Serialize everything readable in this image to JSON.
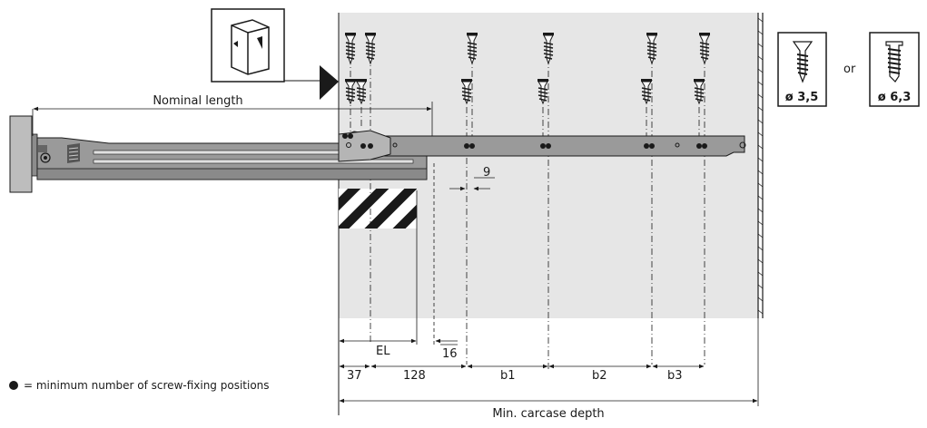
{
  "labels": {
    "nominal_length": "Nominal length",
    "or": "or",
    "screw_a": "ø 3,5",
    "screw_b": "ø 6,3",
    "dim_9": "9",
    "dim_16": "16",
    "dim_el": "EL",
    "dim_37": "37",
    "dim_128": "128",
    "dim_b1": "b1",
    "dim_b2": "b2",
    "dim_b3": "b3",
    "min_depth": "Min. carcase depth"
  },
  "legend": {
    "text": "= minimum number of screw-fixing positions",
    "icon": "filled-circle"
  },
  "icons": {
    "cabinet": "cabinet-icon",
    "arrow": "triangle-pointer-icon",
    "screw": "wood-screw-icon",
    "euro_screw": "euro-screw-icon"
  },
  "colors": {
    "carcase": "#e6e6e6",
    "rail": "#9a9a9a",
    "rail_dark": "#555555",
    "line": "#1a1a1a"
  }
}
